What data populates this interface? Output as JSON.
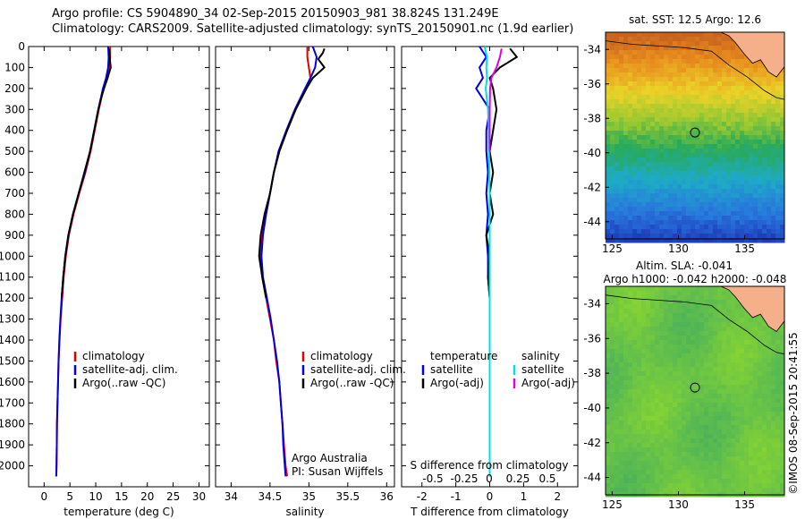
{
  "header": {
    "line1": "Argo profile: CS 5904890_34 02-Sep-2015 20150903_981 38.824S 131.249E",
    "line2": "Climatology: CARS2009. Satellite-adjusted climatology: synTS_20150901.nc (1.9d earlier)"
  },
  "colors": {
    "climatology": "#e00000",
    "satellite": "#0000e0",
    "argo": "#000000",
    "satellite_sal": "#00e0e0",
    "argo_sal": "#e000e0",
    "land": "#f5b08a"
  },
  "chart_data": [
    {
      "type": "line",
      "id": "temperature",
      "xlabel": "temperature (deg C)",
      "ylabel": "",
      "xlim": [
        -3,
        32
      ],
      "ylim": [
        2100,
        0
      ],
      "xticks": [
        "0",
        "5",
        "10",
        "15",
        "20",
        "25",
        "30"
      ],
      "yticks": [
        "0",
        "100",
        "200",
        "300",
        "400",
        "500",
        "600",
        "700",
        "800",
        "900",
        "1000",
        "1100",
        "1200",
        "1300",
        "1400",
        "1500",
        "1600",
        "1700",
        "1800",
        "1900",
        "2000"
      ],
      "legend": [
        "climatology",
        "satellite-adj. clim.",
        "Argo(..raw -QC)"
      ],
      "series": [
        {
          "name": "climatology",
          "depth": [
            0,
            50,
            100,
            150,
            200,
            300,
            400,
            500,
            600,
            700,
            800,
            900,
            1000,
            1100,
            1200,
            1300,
            1400,
            1500,
            1600,
            1700,
            1800,
            1900,
            2000,
            2050
          ],
          "values": [
            12.8,
            12.8,
            12.7,
            12.2,
            11.5,
            10.6,
            9.8,
            9.0,
            8.0,
            6.8,
            5.7,
            4.8,
            4.2,
            3.8,
            3.5,
            3.2,
            3.0,
            2.8,
            2.7,
            2.6,
            2.5,
            2.45,
            2.4,
            2.35
          ]
        },
        {
          "name": "satellite-adj. clim.",
          "depth": [
            0,
            50,
            100,
            150,
            200,
            300,
            400,
            500,
            600,
            700,
            800,
            900,
            1000,
            1100,
            1200,
            1300,
            1400,
            1500,
            1600,
            1700,
            1800,
            1900,
            2000,
            2050
          ],
          "values": [
            12.4,
            12.5,
            12.4,
            12.0,
            11.4,
            10.5,
            9.7,
            8.9,
            7.9,
            6.7,
            5.6,
            4.7,
            4.1,
            3.7,
            3.4,
            3.15,
            2.95,
            2.8,
            2.7,
            2.6,
            2.5,
            2.45,
            2.4,
            2.35
          ]
        },
        {
          "name": "Argo(..raw -QC)",
          "depth": [
            10,
            50,
            100,
            150,
            200,
            250,
            300,
            400,
            500,
            600,
            700,
            800,
            900,
            1000,
            1100,
            1200
          ],
          "values": [
            12.6,
            12.7,
            12.9,
            12.3,
            11.6,
            11.0,
            10.5,
            9.7,
            8.9,
            7.8,
            6.7,
            5.6,
            4.7,
            4.1,
            3.7,
            3.4
          ]
        }
      ]
    },
    {
      "type": "line",
      "id": "salinity",
      "xlabel": "salinity",
      "ylabel": "",
      "xlim": [
        33.8,
        36.1
      ],
      "ylim": [
        2100,
        0
      ],
      "xticks": [
        "34",
        "34.5",
        "35",
        "35.5",
        "36"
      ],
      "legend": [
        "climatology",
        "satellite-adj. clim.",
        "Argo(..raw -QC)"
      ],
      "annotation": [
        "Argo Australia",
        "PI: Susan Wijffels"
      ],
      "series": [
        {
          "name": "climatology",
          "depth": [
            0,
            50,
            100,
            150,
            200,
            300,
            400,
            500,
            600,
            700,
            800,
            900,
            1000,
            1100,
            1200,
            1300,
            1400,
            1500,
            1600,
            1700,
            1800,
            1900,
            2000,
            2050
          ],
          "values": [
            34.98,
            34.98,
            35.0,
            35.02,
            34.96,
            34.83,
            34.72,
            34.62,
            34.55,
            34.5,
            34.45,
            34.4,
            34.38,
            34.4,
            34.45,
            34.5,
            34.55,
            34.58,
            34.62,
            34.64,
            34.66,
            34.68,
            34.7,
            34.72
          ]
        },
        {
          "name": "satellite-adj. clim.",
          "depth": [
            0,
            50,
            100,
            150,
            200,
            300,
            400,
            500,
            600,
            700,
            800,
            900,
            1000,
            1100,
            1200,
            1300,
            1400,
            1500,
            1600,
            1700,
            1800,
            1900,
            2000,
            2050
          ],
          "values": [
            35.05,
            35.1,
            35.08,
            35.02,
            34.95,
            34.82,
            34.71,
            34.61,
            34.55,
            34.5,
            34.45,
            34.41,
            34.39,
            34.41,
            34.46,
            34.51,
            34.55,
            34.59,
            34.62,
            34.64,
            34.66,
            34.67,
            34.69,
            34.7
          ]
        },
        {
          "name": "Argo(..raw -QC)",
          "depth": [
            10,
            30,
            60,
            100,
            150,
            200,
            300,
            400,
            500,
            600,
            700,
            800,
            900,
            1000,
            1100,
            1200
          ],
          "values": [
            35.2,
            35.18,
            35.12,
            35.2,
            35.05,
            34.97,
            34.83,
            34.72,
            34.62,
            34.55,
            34.5,
            34.43,
            34.38,
            34.36,
            34.4,
            34.45
          ]
        }
      ]
    },
    {
      "type": "line",
      "id": "differences",
      "xlabel": "T difference from climatology",
      "secondary_xlabel": "S difference from climatology",
      "xlim": [
        -2.6,
        2.6
      ],
      "ylim": [
        2100,
        0
      ],
      "xticks": [
        "-2",
        "-1",
        "0",
        "1",
        "2"
      ],
      "secondary_xticks": [
        "-0.5",
        "-0.25",
        "0",
        "0.25",
        "0.5"
      ],
      "legend_temperature": {
        "title": "temperature",
        "items": [
          "satellite",
          "Argo(-adj)"
        ]
      },
      "legend_salinity": {
        "title": "salinity",
        "items": [
          "satellite",
          "Argo(-adj)"
        ]
      },
      "series": [
        {
          "name": "temperature satellite",
          "depth": [
            0,
            50,
            100,
            150,
            200,
            300,
            400,
            500,
            600,
            700,
            800,
            900,
            1000,
            1100,
            1200,
            1400,
            1600,
            1800,
            2000,
            2050
          ],
          "values": [
            -0.3,
            -0.1,
            -0.3,
            -0.2,
            -0.4,
            0.0,
            -0.1,
            -0.1,
            -0.05,
            -0.1,
            -0.05,
            -0.1,
            -0.05,
            -0.05,
            0.0,
            0.0,
            0.0,
            0.0,
            0.0,
            0.0
          ]
        },
        {
          "name": "temperature Argo(-adj)",
          "depth": [
            10,
            50,
            100,
            150,
            200,
            300,
            400,
            500,
            600,
            700,
            800,
            900,
            1000,
            1100,
            1200
          ],
          "values": [
            0.6,
            0.8,
            0.3,
            0.0,
            0.1,
            0.2,
            0.1,
            0.0,
            0.1,
            0.0,
            0.1,
            -0.1,
            0.0,
            -0.05,
            0.0
          ]
        },
        {
          "name": "salinity satellite",
          "depth": [
            0,
            50,
            100,
            150,
            200,
            300,
            400,
            500,
            600,
            700,
            800,
            900,
            1000,
            1100,
            1200,
            1400,
            1600,
            1800,
            2000,
            2050
          ],
          "values": [
            -0.15,
            -0.08,
            -0.1,
            -0.08,
            -0.12,
            -0.05,
            -0.03,
            -0.02,
            -0.01,
            0.0,
            0.0,
            0.0,
            0.0,
            0.0,
            0.0,
            0.0,
            0.0,
            0.0,
            0.0,
            0.0
          ]
        },
        {
          "name": "salinity Argo(-adj)",
          "depth": [
            10,
            50,
            100,
            150,
            200,
            300,
            400,
            500
          ],
          "values": [
            0.35,
            0.3,
            0.2,
            0.05,
            0.01,
            0.0,
            0.0,
            0.0
          ]
        }
      ]
    },
    {
      "type": "heatmap",
      "id": "sst-map",
      "title": "sat. SST: 12.5 Argo: 12.6",
      "xlim": [
        124.5,
        138
      ],
      "ylim": [
        -45,
        -33
      ],
      "xticks": [
        "125",
        "130",
        "135"
      ],
      "yticks": [
        "-34",
        "-36",
        "-38",
        "-40",
        "-42",
        "-44"
      ],
      "marker": {
        "lon": 131.249,
        "lat": -38.824
      }
    },
    {
      "type": "heatmap",
      "id": "sla-map",
      "title_lines": [
        "Altim. SLA: -0.041",
        "Argo h1000: -0.042 h2000: -0.048"
      ],
      "xlim": [
        124.5,
        138
      ],
      "ylim": [
        -45,
        -33
      ],
      "xticks": [
        "125",
        "130",
        "135"
      ],
      "yticks": [
        "-34",
        "-36",
        "-38",
        "-40",
        "-42",
        "-44"
      ],
      "marker": {
        "lon": 131.249,
        "lat": -38.824
      }
    }
  ],
  "side_label": "©IMOS 08-Sep-2015 20:41:55"
}
